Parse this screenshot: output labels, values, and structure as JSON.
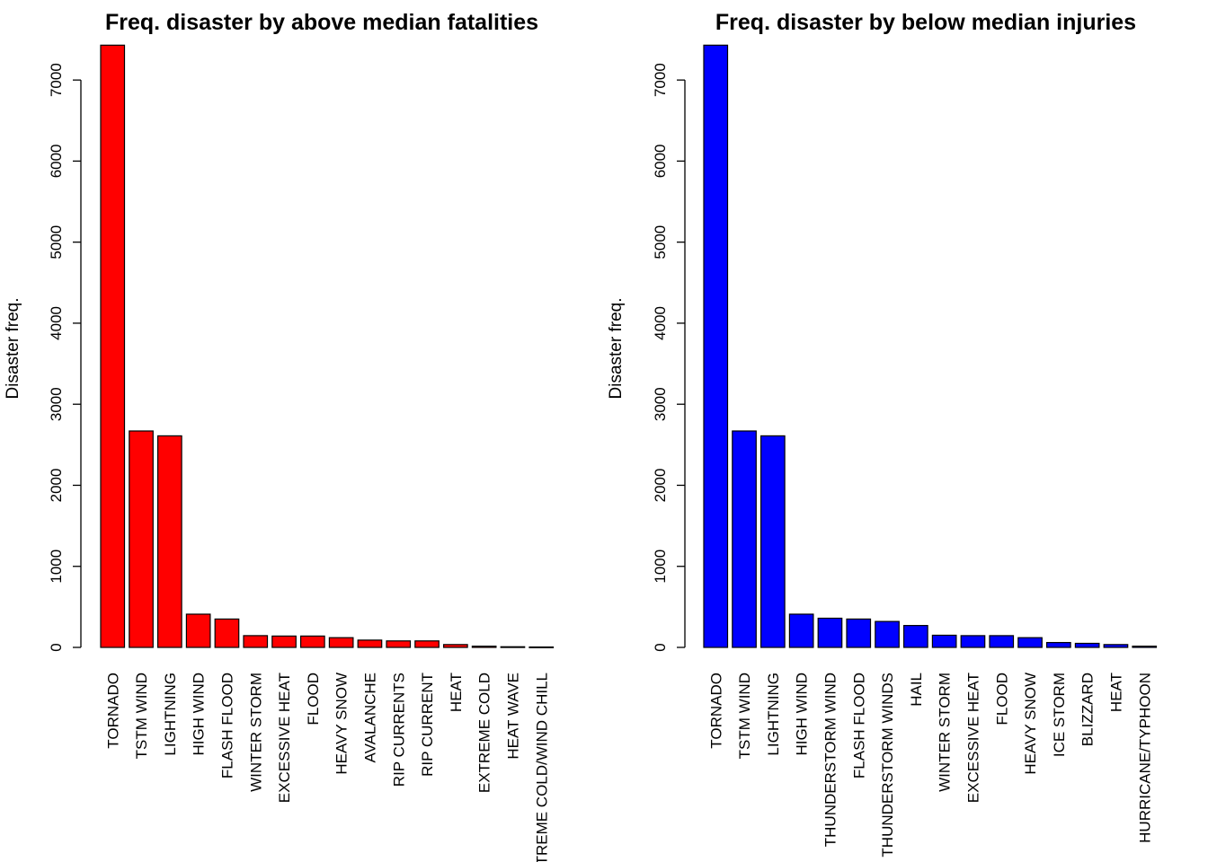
{
  "chart_data": [
    {
      "type": "bar",
      "title": "Freq. disaster by above median fatalities",
      "xlabel": "",
      "ylabel": "Disaster freq.",
      "ylim": [
        0,
        7500
      ],
      "yticks": [
        0,
        1000,
        2000,
        3000,
        4000,
        5000,
        6000,
        7000
      ],
      "bar_color": "#ff0000",
      "categories": [
        "TORNADO",
        "TSTM WIND",
        "LIGHTNING",
        "HIGH WIND",
        "FLASH FLOOD",
        "WINTER STORM",
        "EXCESSIVE HEAT",
        "FLOOD",
        "HEAVY SNOW",
        "AVALANCHE",
        "RIP CURRENTS",
        "RIP CURRENT",
        "HEAT",
        "EXTREME COLD",
        "HEAT WAVE",
        "EXTREME COLD/WIND CHILL"
      ],
      "values": [
        7430,
        2670,
        2610,
        410,
        350,
        145,
        140,
        140,
        120,
        90,
        80,
        80,
        35,
        15,
        8,
        5
      ]
    },
    {
      "type": "bar",
      "title": "Freq. disaster by below median injuries",
      "xlabel": "",
      "ylabel": "Disaster freq.",
      "ylim": [
        0,
        7500
      ],
      "yticks": [
        0,
        1000,
        2000,
        3000,
        4000,
        5000,
        6000,
        7000
      ],
      "bar_color": "#0000ff",
      "categories": [
        "TORNADO",
        "TSTM WIND",
        "LIGHTNING",
        "HIGH WIND",
        "THUNDERSTORM WIND",
        "FLASH FLOOD",
        "THUNDERSTORM WINDS",
        "HAIL",
        "WINTER STORM",
        "EXCESSIVE HEAT",
        "FLOOD",
        "HEAVY SNOW",
        "ICE STORM",
        "BLIZZARD",
        "HEAT",
        "HURRICANE/TYPHOON"
      ],
      "values": [
        7430,
        2670,
        2610,
        410,
        360,
        350,
        320,
        270,
        150,
        145,
        145,
        120,
        60,
        50,
        35,
        15
      ]
    }
  ]
}
